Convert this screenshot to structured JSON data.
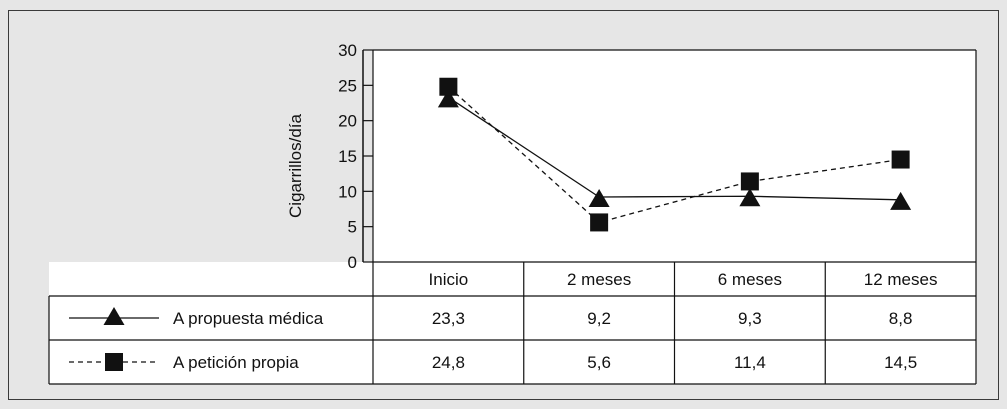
{
  "chart_data": {
    "type": "line",
    "title": "",
    "ylabel": "Cigarrillos/día",
    "xlabel": "",
    "ylim": [
      0,
      30
    ],
    "yticks": [
      0,
      5,
      10,
      15,
      20,
      25,
      30
    ],
    "categories": [
      "Inicio",
      "2 meses",
      "6 meses",
      "12 meses"
    ],
    "series": [
      {
        "name": "A propuesta médica",
        "marker": "triangle",
        "line_style": "solid",
        "values": [
          23.3,
          9.2,
          9.3,
          8.8
        ],
        "labels": [
          "23,3",
          "9,2",
          "9,3",
          "8,8"
        ]
      },
      {
        "name": "A petición propia",
        "marker": "square",
        "line_style": "dashed",
        "values": [
          24.8,
          5.6,
          11.4,
          14.5
        ],
        "labels": [
          "24,8",
          "5,6",
          "11,4",
          "14,5"
        ]
      }
    ],
    "grid": false,
    "legend": "table below chart"
  },
  "colors": {
    "background": "#e6e6e6",
    "plot_area": "#ffffff",
    "ink": "#111111"
  }
}
